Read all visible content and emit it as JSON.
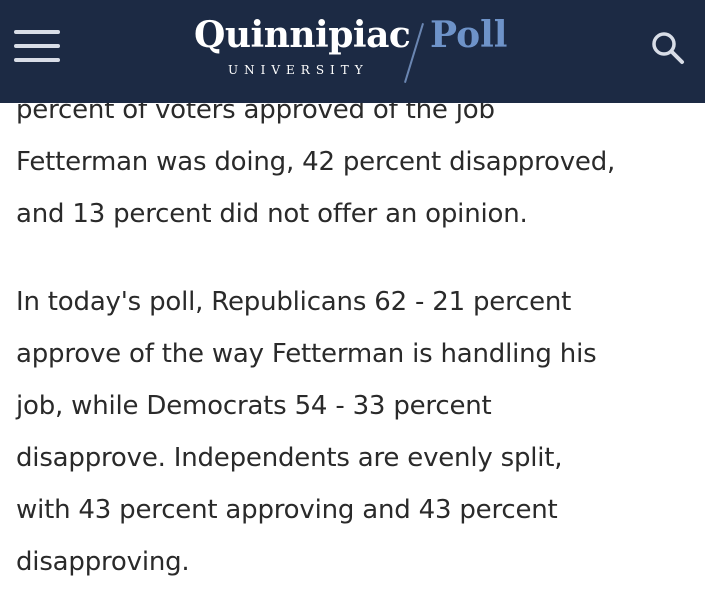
{
  "header": {
    "logo": {
      "name": "Quinnipiac",
      "university": "UNIVERSITY",
      "poll": "Poll"
    },
    "menu_icon": "hamburger-menu-icon",
    "search_icon": "search-icon",
    "colors": {
      "header_bg": "#1c2a44",
      "poll_accent": "#6e93c9",
      "text": "#2a2a2a"
    }
  },
  "article": {
    "paragraphs": [
      {
        "lines": [
          "percent of voters approved of the job",
          "Fetterman was doing, 42 percent disapproved,",
          "and 13 percent did not offer an opinion."
        ]
      },
      {
        "lines": [
          "In today's poll, Republicans 62 - 21 percent",
          "approve of the way Fetterman is handling his",
          "job, while Democrats 54 - 33 percent",
          "disapprove. Independents are evenly split,",
          "with 43 percent approving and 43 percent",
          "disapproving."
        ]
      }
    ]
  }
}
